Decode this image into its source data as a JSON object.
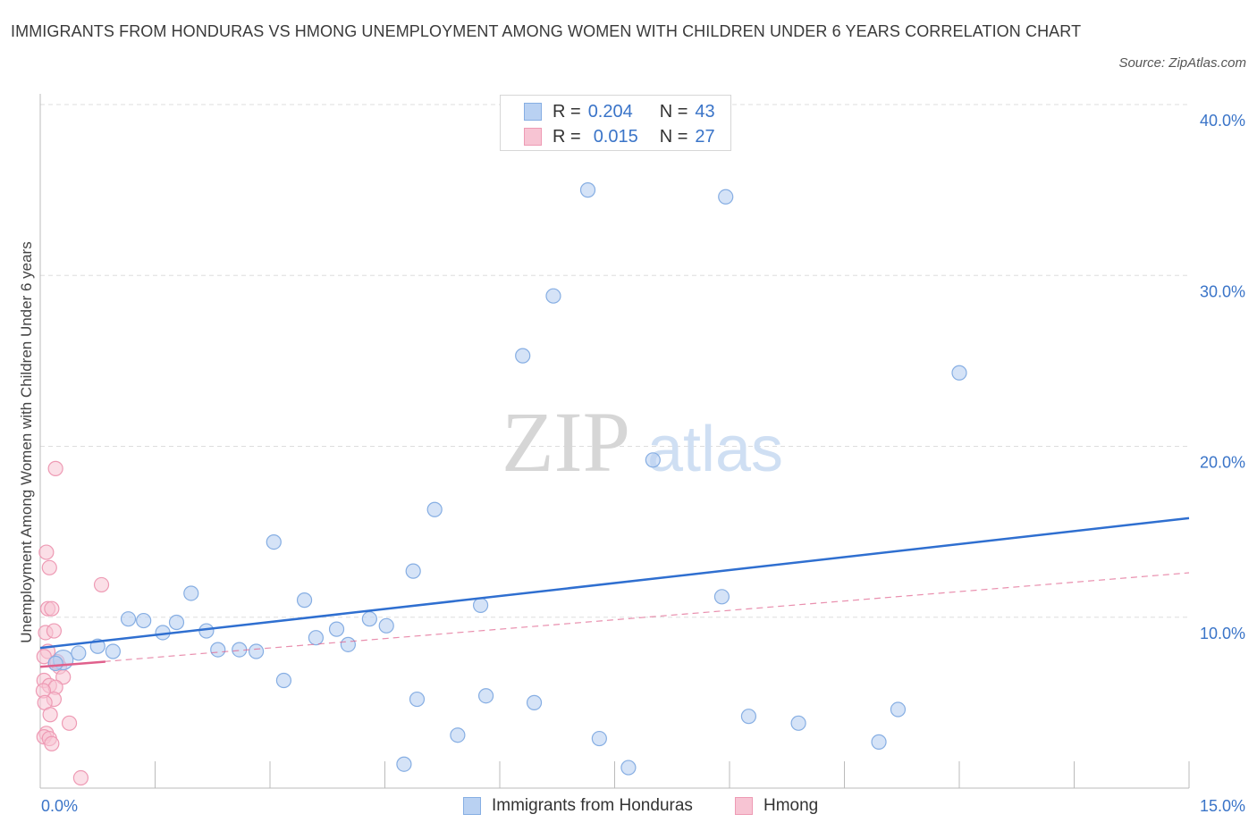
{
  "header": {
    "title": "IMMIGRANTS FROM HONDURAS VS HMONG UNEMPLOYMENT AMONG WOMEN WITH CHILDREN UNDER 6 YEARS CORRELATION CHART",
    "source": "Source: ZipAtlas.com"
  },
  "watermark": {
    "zip": "ZIP",
    "atlas": "atlas"
  },
  "colors": {
    "blue_fill": "#b9d1f2",
    "blue_stroke": "#86aee3",
    "blue_line": "#2f6fd0",
    "pink_fill": "#f7c4d3",
    "pink_stroke": "#ee9ab4",
    "pink_line": "#e0608c",
    "axis_label": "#3a74c8"
  },
  "legend": {
    "rows": [
      {
        "r_label": "R =",
        "r_value": "0.204",
        "n_label": "N =",
        "n_value": "43"
      },
      {
        "r_label": "R =",
        "r_value": "0.015",
        "n_label": "N =",
        "n_value": "27"
      }
    ],
    "bottom": [
      "Immigrants from Honduras",
      "Hmong"
    ]
  },
  "chart_data": {
    "type": "scatter",
    "title": "IMMIGRANTS FROM HONDURAS VS HMONG UNEMPLOYMENT AMONG WOMEN WITH CHILDREN UNDER 6 YEARS CORRELATION CHART",
    "xlabel": "",
    "ylabel": "Unemployment Among Women with Children Under 6 years",
    "xlim": [
      0,
      15
    ],
    "ylim": [
      0,
      40
    ],
    "x_tick_labels": [
      "0.0%",
      "15.0%"
    ],
    "y_ticks": [
      10,
      20,
      30,
      40
    ],
    "y_tick_labels": [
      "10.0%",
      "20.0%",
      "30.0%",
      "40.0%"
    ],
    "grid": "horizontal dashed",
    "legend_position": "top-center",
    "series": [
      {
        "name": "Immigrants from Honduras",
        "points": [
          [
            0.3,
            7.5
          ],
          [
            0.5,
            7.9
          ],
          [
            0.75,
            8.3
          ],
          [
            0.95,
            8.0
          ],
          [
            1.15,
            9.9
          ],
          [
            1.35,
            9.8
          ],
          [
            1.6,
            9.1
          ],
          [
            1.78,
            9.7
          ],
          [
            1.97,
            11.4
          ],
          [
            2.17,
            9.2
          ],
          [
            2.32,
            8.1
          ],
          [
            2.6,
            8.1
          ],
          [
            2.82,
            8.0
          ],
          [
            3.05,
            14.4
          ],
          [
            3.18,
            6.3
          ],
          [
            3.45,
            11.0
          ],
          [
            3.6,
            8.8
          ],
          [
            3.87,
            9.3
          ],
          [
            4.02,
            8.4
          ],
          [
            4.3,
            9.9
          ],
          [
            4.52,
            9.5
          ],
          [
            4.75,
            1.4
          ],
          [
            4.87,
            12.7
          ],
          [
            4.92,
            5.2
          ],
          [
            5.15,
            16.3
          ],
          [
            5.45,
            3.1
          ],
          [
            5.75,
            10.7
          ],
          [
            5.82,
            5.4
          ],
          [
            6.3,
            25.3
          ],
          [
            6.45,
            5.0
          ],
          [
            6.7,
            28.8
          ],
          [
            7.15,
            35.0
          ],
          [
            7.3,
            2.9
          ],
          [
            7.68,
            1.2
          ],
          [
            8.0,
            19.2
          ],
          [
            8.95,
            34.6
          ],
          [
            8.9,
            11.2
          ],
          [
            9.25,
            4.2
          ],
          [
            9.9,
            3.8
          ],
          [
            10.95,
            2.7
          ],
          [
            11.2,
            4.6
          ],
          [
            12.0,
            24.3
          ],
          [
            0.2,
            7.3
          ]
        ],
        "trend": {
          "x": [
            0,
            15
          ],
          "y": [
            8.2,
            15.8
          ]
        }
      },
      {
        "name": "Hmong",
        "points": [
          [
            0.2,
            18.7
          ],
          [
            0.08,
            13.8
          ],
          [
            0.12,
            12.9
          ],
          [
            0.8,
            11.9
          ],
          [
            0.1,
            10.5
          ],
          [
            0.15,
            10.5
          ],
          [
            0.07,
            9.1
          ],
          [
            0.18,
            9.2
          ],
          [
            0.1,
            8.0
          ],
          [
            0.05,
            7.7
          ],
          [
            0.2,
            7.3
          ],
          [
            0.25,
            7.1
          ],
          [
            0.3,
            6.5
          ],
          [
            0.05,
            6.3
          ],
          [
            0.12,
            6.0
          ],
          [
            0.2,
            5.9
          ],
          [
            0.04,
            5.7
          ],
          [
            0.18,
            5.2
          ],
          [
            0.06,
            5.0
          ],
          [
            0.13,
            4.3
          ],
          [
            0.38,
            3.8
          ],
          [
            0.08,
            3.2
          ],
          [
            0.05,
            3.0
          ],
          [
            0.12,
            2.9
          ],
          [
            0.15,
            2.6
          ],
          [
            0.53,
            0.6
          ],
          [
            0.22,
            7.4
          ]
        ],
        "trend_solid": {
          "x": [
            0,
            0.85
          ],
          "y": [
            7.1,
            7.4
          ]
        },
        "trend_dashed": {
          "x": [
            0,
            15
          ],
          "y": [
            7.1,
            12.6
          ]
        }
      }
    ]
  }
}
